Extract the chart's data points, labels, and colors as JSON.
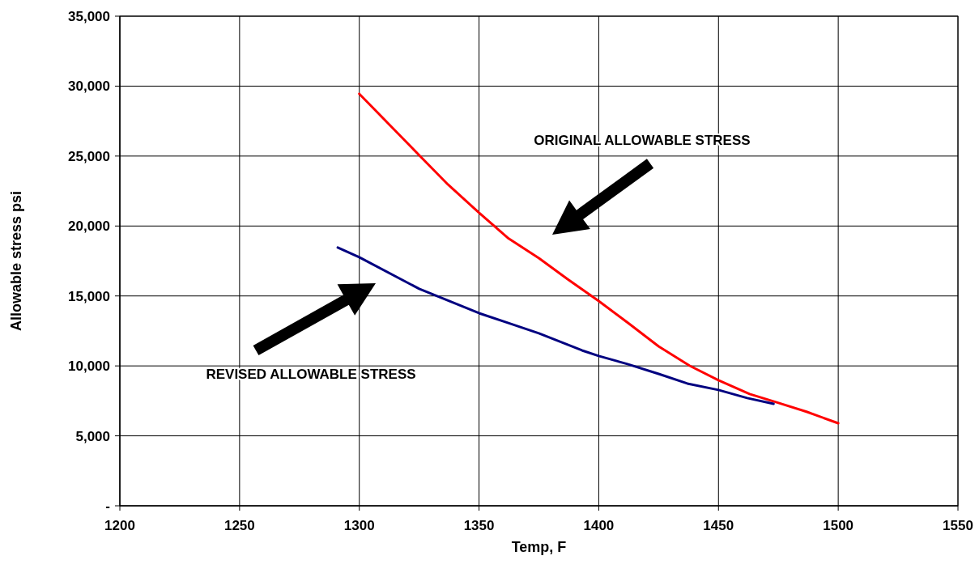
{
  "chart_data": {
    "type": "line",
    "xlabel": "Temp, F",
    "ylabel": "Allowable stress psi",
    "xlim": [
      1200,
      1550
    ],
    "xticks": [
      1200,
      1250,
      1300,
      1350,
      1400,
      1450,
      1500,
      1550
    ],
    "ylim": [
      0,
      35000
    ],
    "yticks": [
      {
        "value": 0,
        "label": "-"
      },
      {
        "value": 5000,
        "label": "5,000"
      },
      {
        "value": 10000,
        "label": "10,000"
      },
      {
        "value": 15000,
        "label": "15,000"
      },
      {
        "value": 20000,
        "label": "20,000"
      },
      {
        "value": 25000,
        "label": "25,000"
      },
      {
        "value": 30000,
        "label": "30,000"
      },
      {
        "value": 35000,
        "label": "35,000"
      }
    ],
    "grid": true,
    "marker": "none",
    "line_style": "solid",
    "series": [
      {
        "color": "#ff0000",
        "x": [
          1300,
          1325,
          1337,
          1350,
          1362,
          1375,
          1387,
          1400,
          1412,
          1425,
          1438,
          1450,
          1463,
          1474,
          1487,
          1500
        ],
        "values": [
          29450,
          25060,
          22970,
          20950,
          19150,
          17700,
          16200,
          14640,
          13100,
          11400,
          10010,
          8970,
          7990,
          7410,
          6710,
          5900
        ]
      },
      {
        "color": "#000080",
        "x": [
          1291,
          1300,
          1325,
          1350,
          1362,
          1375,
          1387,
          1393,
          1400,
          1412,
          1425,
          1437,
          1450,
          1462,
          1473
        ],
        "values": [
          18460,
          17770,
          15510,
          13770,
          13080,
          12330,
          11520,
          11110,
          10710,
          10130,
          9430,
          8740,
          8280,
          7700,
          7290
        ]
      }
    ],
    "annotations": [
      "ORIGINAL ALLOWABLE STRESS",
      "REVISED ALLOWABLE STRESS"
    ]
  }
}
